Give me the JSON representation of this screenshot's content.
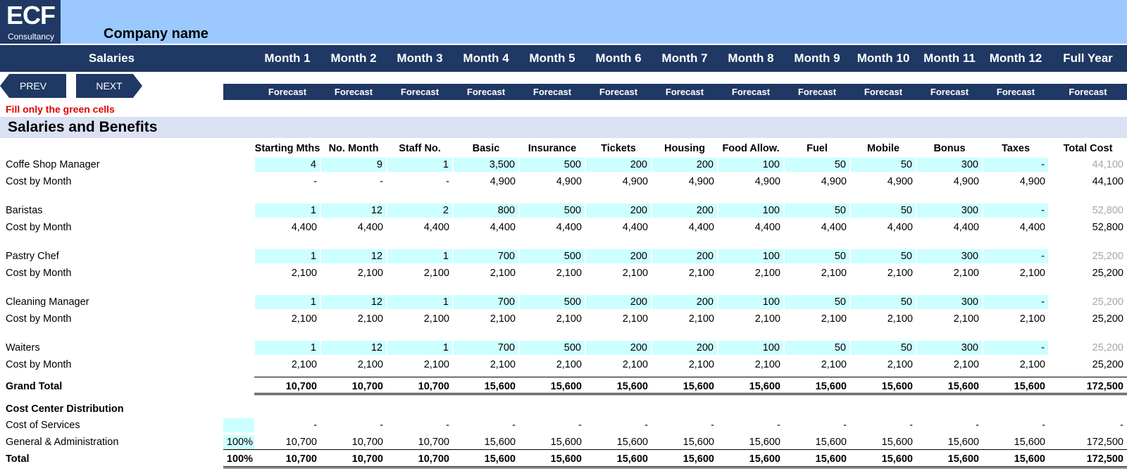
{
  "header": {
    "logo_big": "ECF",
    "logo_small": "Consultancy",
    "company_name": "Company name",
    "section_label": "Salaries",
    "months": [
      "Month 1",
      "Month 2",
      "Month 3",
      "Month 4",
      "Month 5",
      "Month 6",
      "Month 7",
      "Month 8",
      "Month 9",
      "Month 10",
      "Month 11",
      "Month 12",
      "Full Year"
    ],
    "forecast_label": "Forecast"
  },
  "nav": {
    "prev_label": "PREV",
    "next_label": "NEXT"
  },
  "note": "Fill only the green cells",
  "section_title": "Salaries and Benefits",
  "columns": [
    "Starting Mths",
    "No. Month",
    "Staff No.",
    "Basic",
    "Insurance",
    "Tickets",
    "Housing",
    "Food Allow.",
    "Fuel",
    "Mobile",
    "Bonus",
    "Taxes",
    "Total Cost"
  ],
  "employees": [
    {
      "name": "Coffe Shop Manager",
      "inputs": [
        "4",
        "9",
        "1",
        "3,500",
        "500",
        "200",
        "200",
        "100",
        "50",
        "50",
        "300",
        "-"
      ],
      "total": "44,100",
      "cost_label": "Cost by Month",
      "costs": [
        "-",
        "-",
        "-",
        "4,900",
        "4,900",
        "4,900",
        "4,900",
        "4,900",
        "4,900",
        "4,900",
        "4,900",
        "4,900"
      ],
      "cost_total": "44,100"
    },
    {
      "name": "Baristas",
      "inputs": [
        "1",
        "12",
        "2",
        "800",
        "500",
        "200",
        "200",
        "100",
        "50",
        "50",
        "300",
        "-"
      ],
      "total": "52,800",
      "cost_label": "Cost by Month",
      "costs": [
        "4,400",
        "4,400",
        "4,400",
        "4,400",
        "4,400",
        "4,400",
        "4,400",
        "4,400",
        "4,400",
        "4,400",
        "4,400",
        "4,400"
      ],
      "cost_total": "52,800"
    },
    {
      "name": "Pastry Chef",
      "inputs": [
        "1",
        "12",
        "1",
        "700",
        "500",
        "200",
        "200",
        "100",
        "50",
        "50",
        "300",
        "-"
      ],
      "total": "25,200",
      "cost_label": "Cost by Month",
      "costs": [
        "2,100",
        "2,100",
        "2,100",
        "2,100",
        "2,100",
        "2,100",
        "2,100",
        "2,100",
        "2,100",
        "2,100",
        "2,100",
        "2,100"
      ],
      "cost_total": "25,200"
    },
    {
      "name": "Cleaning Manager",
      "inputs": [
        "1",
        "12",
        "1",
        "700",
        "500",
        "200",
        "200",
        "100",
        "50",
        "50",
        "300",
        "-"
      ],
      "total": "25,200",
      "cost_label": "Cost by Month",
      "costs": [
        "2,100",
        "2,100",
        "2,100",
        "2,100",
        "2,100",
        "2,100",
        "2,100",
        "2,100",
        "2,100",
        "2,100",
        "2,100",
        "2,100"
      ],
      "cost_total": "25,200"
    },
    {
      "name": "Waiters",
      "inputs": [
        "1",
        "12",
        "1",
        "700",
        "500",
        "200",
        "200",
        "100",
        "50",
        "50",
        "300",
        "-"
      ],
      "total": "25,200",
      "cost_label": "Cost by Month",
      "costs": [
        "2,100",
        "2,100",
        "2,100",
        "2,100",
        "2,100",
        "2,100",
        "2,100",
        "2,100",
        "2,100",
        "2,100",
        "2,100",
        "2,100"
      ],
      "cost_total": "25,200"
    }
  ],
  "grand_total": {
    "label": "Grand Total",
    "values": [
      "10,700",
      "10,700",
      "10,700",
      "15,600",
      "15,600",
      "15,600",
      "15,600",
      "15,600",
      "15,600",
      "15,600",
      "15,600",
      "15,600",
      "172,500"
    ]
  },
  "cost_center": {
    "title": "Cost Center Distribution",
    "rows": [
      {
        "label": "Cost of Services",
        "pct": "",
        "values": [
          "-",
          "-",
          "-",
          "-",
          "-",
          "-",
          "-",
          "-",
          "-",
          "-",
          "-",
          "-",
          "-"
        ]
      },
      {
        "label": "General & Administration",
        "pct": "100%",
        "values": [
          "10,700",
          "10,700",
          "10,700",
          "15,600",
          "15,600",
          "15,600",
          "15,600",
          "15,600",
          "15,600",
          "15,600",
          "15,600",
          "15,600",
          "172,500"
        ]
      }
    ],
    "total": {
      "label": "Total",
      "pct": "100%",
      "values": [
        "10,700",
        "10,700",
        "10,700",
        "15,600",
        "15,600",
        "15,600",
        "15,600",
        "15,600",
        "15,600",
        "15,600",
        "15,600",
        "15,600",
        "172,500"
      ]
    }
  },
  "colors": {
    "navy": "#1f3864",
    "top_band": "#9bc9ff",
    "section_band": "#d9e1f2",
    "input_cell": "#ccffff",
    "note_red": "#e00000"
  }
}
